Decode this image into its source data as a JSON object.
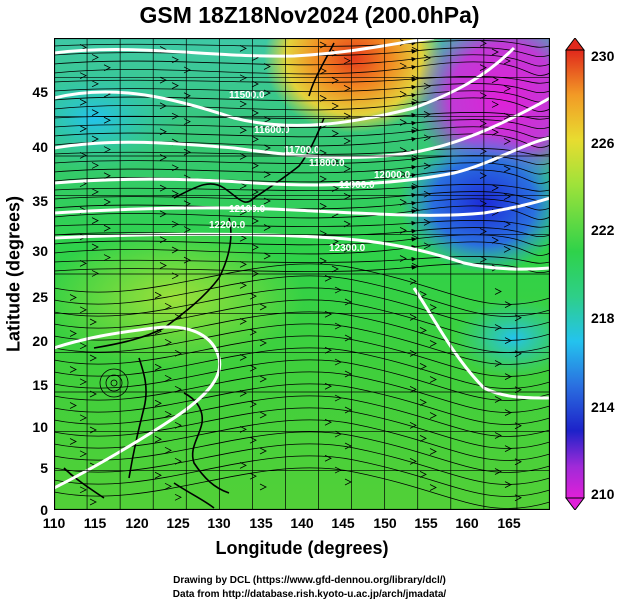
{
  "title": "GSM 18Z18Nov2024 (200.0hPa)",
  "x_axis": {
    "label": "Longitude (degrees)",
    "ticks": [
      "110",
      "115",
      "120",
      "125",
      "130",
      "135",
      "140",
      "145",
      "150",
      "155",
      "160",
      "165"
    ]
  },
  "y_axis": {
    "label": "Latitude  (degrees)",
    "ticks": [
      "0",
      "5",
      "10",
      "15",
      "20",
      "25",
      "30",
      "35",
      "40",
      "45"
    ]
  },
  "colorbar": {
    "ticks": [
      "230",
      "226",
      "222",
      "218",
      "214",
      "210"
    ],
    "min": 210,
    "max": 230
  },
  "contour_labels": [
    "11500.0",
    "11600.0",
    "11700.0",
    "11800.0",
    "11900.0",
    "12000.0",
    "12100.0",
    "12200.0",
    "12300.0"
  ],
  "credits": {
    "line1": "Drawing by DCL (https://www.gfd-dennou.org/library/dcl/)",
    "line2": "Data from http://database.rish.kyoto-u.ac.jp/arch/jmadata/"
  },
  "chart_data": {
    "type": "heatmap",
    "title": "GSM 18Z18Nov2024 (200.0hPa)",
    "xlabel": "Longitude (degrees)",
    "ylabel": "Latitude  (degrees)",
    "xlim": [
      110,
      170
    ],
    "ylim": [
      0,
      50
    ],
    "colorbar_range": [
      210,
      230
    ],
    "colorbar_ticks": [
      210,
      214,
      218,
      222,
      226,
      230
    ],
    "overlays": [
      "streamlines",
      "geopotential height contours",
      "coastlines",
      "grid"
    ],
    "grid": true
  }
}
